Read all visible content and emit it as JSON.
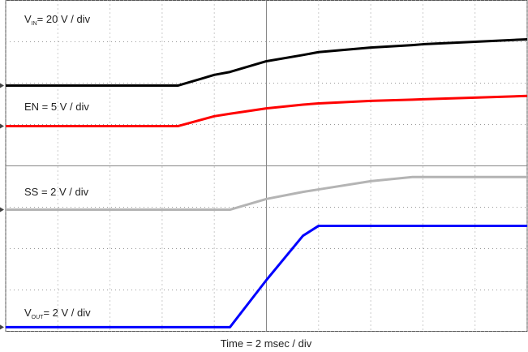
{
  "chart_data": {
    "type": "line",
    "x": [
      0,
      3.3,
      4,
      4.3,
      5,
      5.7,
      6,
      7,
      7.8,
      8,
      9,
      10
    ],
    "series": [
      {
        "color": "#000000",
        "values": [
          5.94,
          5.94,
          6.2,
          6.27,
          6.53,
          6.68,
          6.75,
          6.86,
          6.92,
          6.94,
          7.0,
          7.06
        ]
      },
      {
        "color": "#ff0000",
        "values": [
          4.96,
          4.96,
          5.2,
          5.26,
          5.39,
          5.48,
          5.51,
          5.57,
          5.6,
          5.61,
          5.65,
          5.69
        ]
      },
      {
        "color": "#b4b4b4",
        "values": [
          2.94,
          2.94,
          2.94,
          2.94,
          3.2,
          3.37,
          3.43,
          3.63,
          3.73,
          3.73,
          3.73,
          3.73
        ]
      },
      {
        "color": "#0000ff",
        "values": [
          0.1,
          0.1,
          0.1,
          0.1,
          1.24,
          2.31,
          2.55,
          2.55,
          2.55,
          2.55,
          2.55,
          2.55
        ]
      }
    ],
    "annotations": [
      {
        "main": "V",
        "sub": "IN",
        "rest": "= 20 V / div"
      },
      {
        "main": "EN = 5 V / div"
      },
      {
        "main": "SS = 2 V / div"
      },
      {
        "main": "V",
        "sub": "OUT",
        "rest": "= 2 V / div"
      }
    ],
    "xlabel": "Time = 2 msec / div",
    "xlim": [
      0,
      10
    ],
    "ylim": [
      0,
      8
    ],
    "xticks": [
      0,
      1,
      2,
      3,
      4,
      5,
      6,
      7,
      8,
      9,
      10
    ],
    "yticks": [
      0,
      1,
      2,
      3,
      4,
      5,
      6,
      7,
      8
    ],
    "grid": true
  }
}
